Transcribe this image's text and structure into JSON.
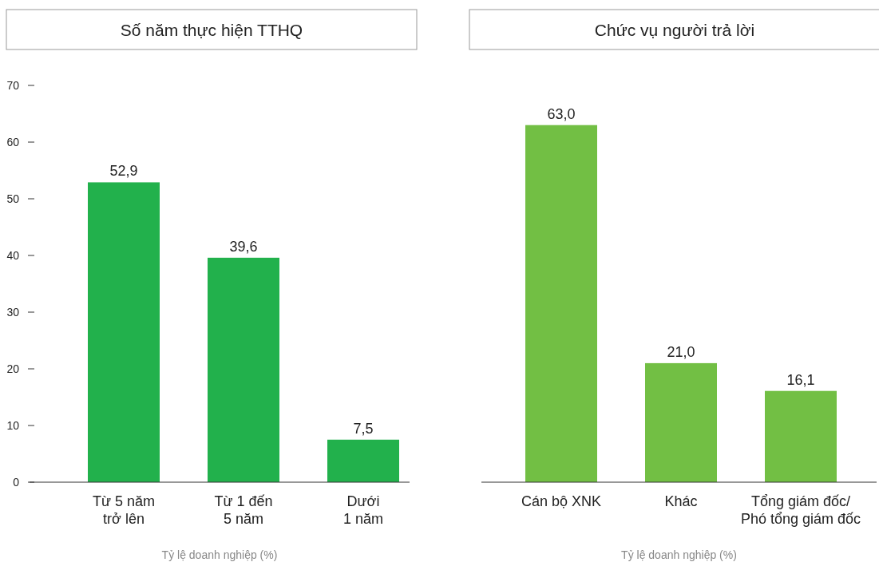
{
  "chart_data": [
    {
      "type": "bar",
      "title": "Số năm thực hiện TTHQ",
      "xlabel": "Tỷ lệ doanh nghiệp (%)",
      "categories": [
        "Từ 5 năm\ntrở lên",
        "Từ 1 đến\n5 năm",
        "Dưới\n1 năm"
      ],
      "values": [
        52.9,
        39.6,
        7.5
      ],
      "value_labels": [
        "52,9",
        "39,6",
        "7,5"
      ],
      "color": "#22b14c",
      "ylim": [
        0,
        70
      ],
      "yticks": [
        0,
        10,
        20,
        30,
        40,
        50,
        60,
        70
      ],
      "grid": false
    },
    {
      "type": "bar",
      "title": "Chức vụ người trả lời",
      "xlabel": "Tỷ lệ doanh nghiệp (%)",
      "categories": [
        "Cán bộ XNK",
        "Khác",
        "Tổng giám đốc/\nPhó tổng giám đốc"
      ],
      "values": [
        63.0,
        21.0,
        16.1
      ],
      "value_labels": [
        "63,0",
        "21,0",
        "16,1"
      ],
      "color": "#72bf44",
      "ylim": [
        0,
        70
      ],
      "tick_labels": "x",
      "grid": false
    }
  ]
}
